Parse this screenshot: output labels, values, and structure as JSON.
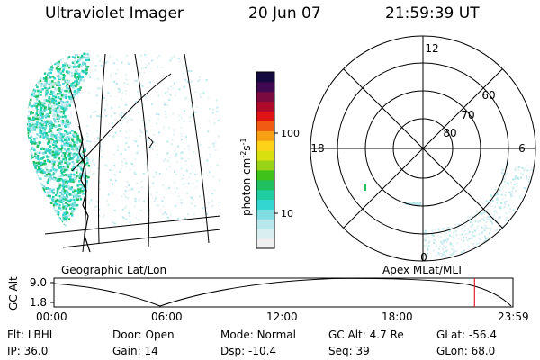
{
  "header": {
    "title": "Ultraviolet Imager",
    "date": "20 Jun 07",
    "time": "21:59:39 UT"
  },
  "colorbar": {
    "label_base": "photon cm",
    "label_sup1": "-2",
    "label_mid": "s",
    "label_sup2": "-1",
    "ticks": [
      "100",
      "10"
    ],
    "colors": [
      "#f0f0f0",
      "#d8eef0",
      "#b8e8ec",
      "#80dde2",
      "#33d6d0",
      "#20cda0",
      "#20c060",
      "#3fc21a",
      "#9ad217",
      "#d8e010",
      "#ffd21a",
      "#f7a015",
      "#f05a12",
      "#e01414",
      "#b00a2a",
      "#7a0a40",
      "#400a50",
      "#140a40"
    ]
  },
  "labels": {
    "geo": "Geographic Lat/Lon",
    "apex": "Apex MLat/MLT"
  },
  "polar": {
    "mlt_top": "12",
    "mlt_left": "18",
    "mlt_right": "6",
    "mlt_bottom": "0",
    "lat_60": "60",
    "lat_70": "70",
    "lat_80": "80"
  },
  "altplot": {
    "ylabel": "GC Alt",
    "yticks": [
      "9.0",
      "1.8"
    ],
    "xticks": [
      "00:00",
      "06:00",
      "12:00",
      "18:00",
      "23:59"
    ],
    "marker_hours": 21.99
  },
  "info": {
    "row1": [
      {
        "key": "Flt:",
        "value": "LBHL"
      },
      {
        "key": "Door:",
        "value": "Open"
      },
      {
        "key": "Mode:",
        "value": "Normal"
      },
      {
        "key": "GC Alt:",
        "value": "4.7 Re"
      },
      {
        "key": "GLat:",
        "value": "-56.4"
      }
    ],
    "row2": [
      {
        "key": "IP:",
        "value": "36.0"
      },
      {
        "key": "Gain:",
        "value": "14"
      },
      {
        "key": "Dsp:",
        "value": "-10.4"
      },
      {
        "key": "Seq:",
        "value": "39"
      },
      {
        "key": "GLon:",
        "value": "68.0"
      }
    ]
  }
}
